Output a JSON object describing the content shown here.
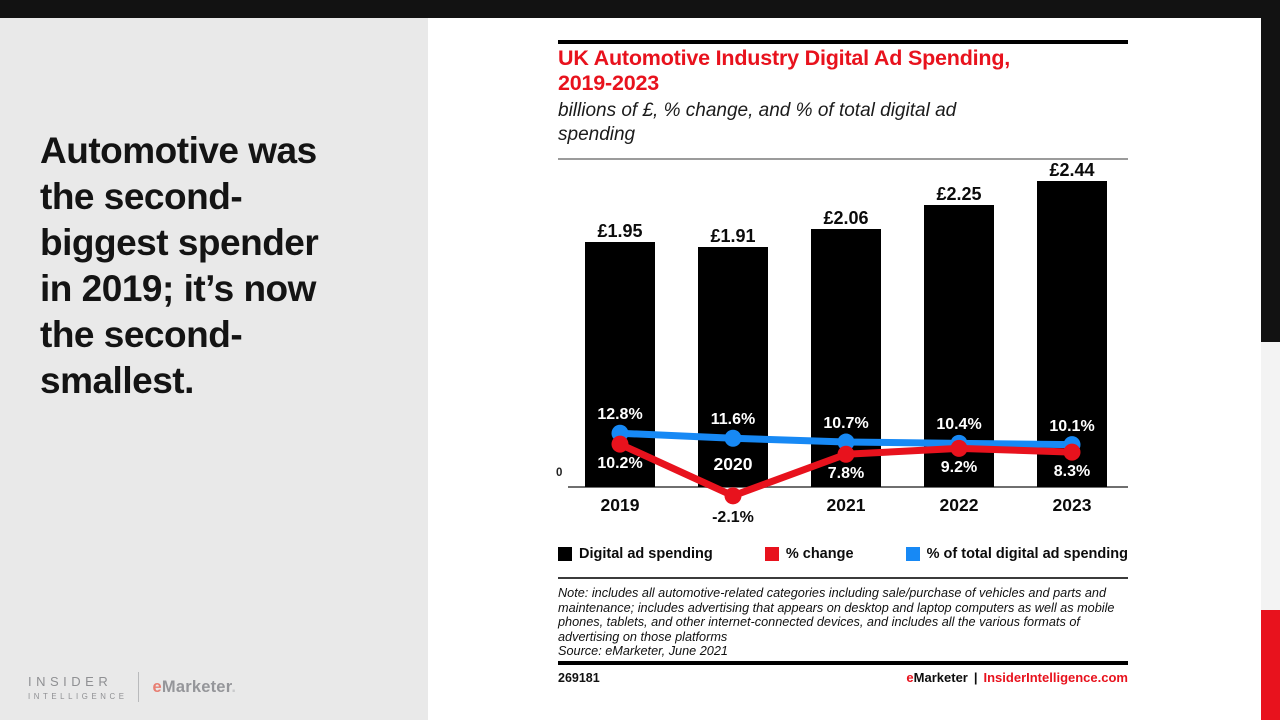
{
  "slide": {
    "headline_lines": [
      "Automotive was",
      "the second-",
      "biggest spender",
      "in 2019; it’s now",
      "the second-",
      "smallest."
    ],
    "logo": {
      "insider": "INSIDER",
      "intelligence": "INTELLIGENCE",
      "emarketer_e": "e",
      "emarketer_rest": "Marketer",
      "emarketer_dot": "."
    }
  },
  "chart": {
    "title_lines": [
      "UK Automotive Industry Digital Ad Spending,",
      "2019-2023"
    ],
    "subtitle_lines": [
      "billions of £, % change, and % of total digital ad",
      "spending"
    ],
    "note": "Note: includes all automotive-related categories including sale/purchase of vehicles and parts and maintenance; includes advertising that appears on desktop and laptop computers as well as mobile phones, tablets, and other internet-connected devices, and includes all the various formats of advertising on those platforms",
    "source": "Source: eMarketer, June 2021",
    "chart_id": "269181",
    "footer": {
      "e": "e",
      "marketer": "Marketer",
      "separator": "|",
      "site": "InsiderIntelligence.com"
    }
  },
  "chart_data": {
    "type": "bar",
    "title": "UK Automotive Industry Digital Ad Spending, 2019-2023",
    "subtitle": "billions of £, % change, and % of total digital ad spending",
    "categories": [
      "2019",
      "2020",
      "2021",
      "2022",
      "2023"
    ],
    "series": [
      {
        "name": "Digital ad spending",
        "kind": "bar",
        "unit": "billions of £",
        "color": "#000000",
        "values": [
          1.95,
          1.91,
          2.06,
          2.25,
          2.44
        ],
        "labels": [
          "£1.95",
          "£1.91",
          "£2.06",
          "£2.25",
          "£2.44"
        ]
      },
      {
        "name": "% change",
        "kind": "line",
        "color": "#e8121d",
        "label_position": "below",
        "values": [
          10.2,
          -2.1,
          7.8,
          9.2,
          8.3
        ],
        "labels": [
          "10.2%",
          "-2.1%",
          "7.8%",
          "9.2%",
          "8.3%"
        ]
      },
      {
        "name": "% of total digital ad spending",
        "kind": "line",
        "color": "#1789f5",
        "label_position": "above",
        "values": [
          12.8,
          11.6,
          10.7,
          10.4,
          10.1
        ],
        "labels": [
          "12.8%",
          "11.6%",
          "10.7%",
          "10.4%",
          "10.1%"
        ]
      }
    ],
    "axis": {
      "zero_label": "0",
      "grid": false
    },
    "legend_position": "bottom",
    "year_label_inside_bar": [
      "2020"
    ]
  },
  "colors": {
    "accent_red": "#e8121d",
    "line_blue": "#1789f5",
    "bar_black": "#000000",
    "left_panel_gray": "#e9e9e9",
    "edge_gray": "#f3f3f3",
    "background_black": "#121212"
  }
}
